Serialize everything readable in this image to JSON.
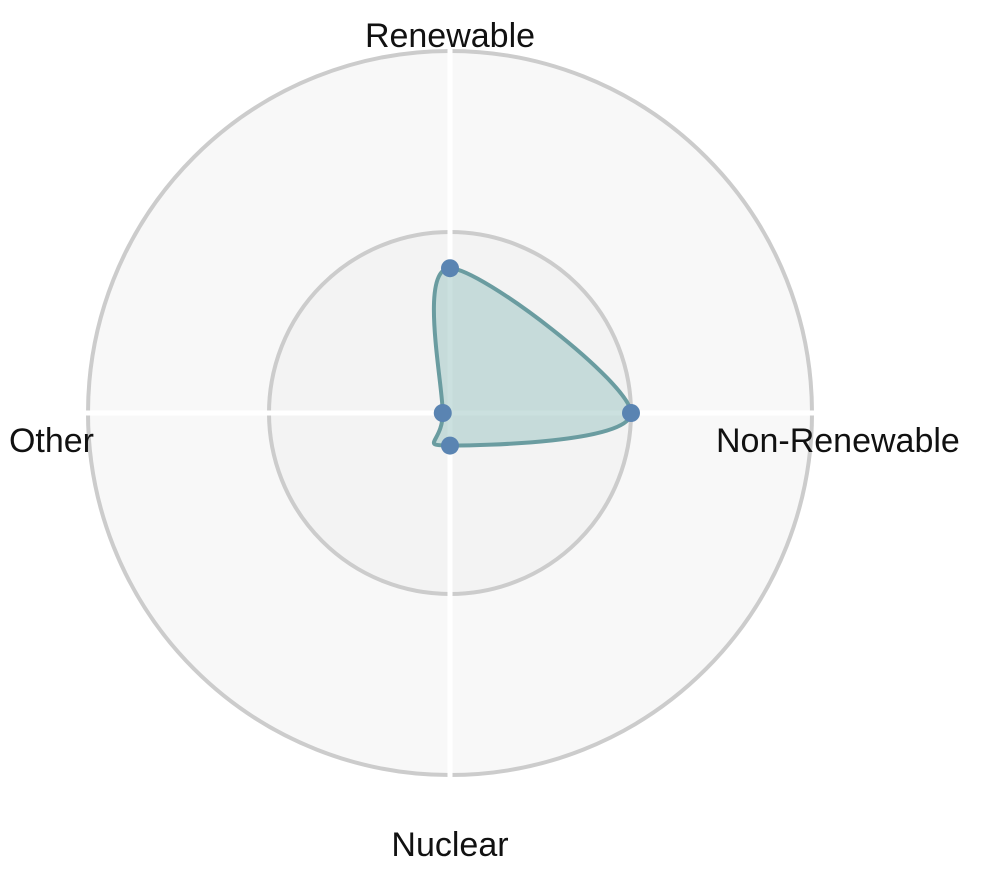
{
  "chart_data": {
    "type": "radar",
    "axes": [
      "Renewable",
      "Non-Renewable",
      "Nuclear",
      "Other"
    ],
    "series": [
      {
        "values": [
          40,
          50,
          9,
          2
        ]
      }
    ],
    "rlim": [
      0,
      100
    ],
    "rings": [
      50,
      100
    ],
    "grid": true,
    "legend": "none",
    "colors": {
      "fill": "#a9cbc9",
      "line": "#6a9ca0",
      "point": "#5a84b2",
      "ring": "#cccccc",
      "background_outer": "#f8f8f8",
      "background_inner": "#f3f3f3",
      "spoke": "#ffffff"
    }
  }
}
